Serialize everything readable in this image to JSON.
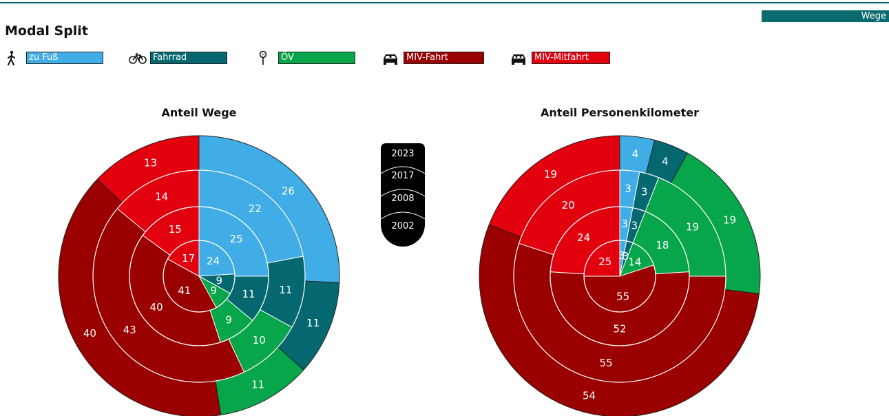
{
  "header": {
    "badge": "Wege",
    "title": "Modal Split"
  },
  "legend": [
    {
      "key": "fuss",
      "label": "zu Fuß",
      "color": "#41ade6",
      "icon": "pedestrian-icon"
    },
    {
      "key": "rad",
      "label": "Fahrrad",
      "color": "#056870",
      "icon": "bicycle-icon"
    },
    {
      "key": "oev",
      "label": "ÖV",
      "color": "#08a64a",
      "icon": "bus-stop-icon"
    },
    {
      "key": "mivf",
      "label": "MIV-Fahrt",
      "color": "#9a0000",
      "icon": "car-driver-icon"
    },
    {
      "key": "mivm",
      "label": "MIV-Mitfahrt",
      "color": "#e2000f",
      "icon": "car-passenger-icon"
    }
  ],
  "year_selector": {
    "years": [
      "2023",
      "2017",
      "2008",
      "2002"
    ]
  },
  "chart_data": [
    {
      "type": "pie",
      "title": "Anteil Wege",
      "rings_inner_to_outer": [
        "2002",
        "2008",
        "2017",
        "2023"
      ],
      "categories": [
        "zu Fuß",
        "Fahrrad",
        "ÖV",
        "MIV-Fahrt",
        "MIV-Mitfahrt"
      ],
      "series": [
        {
          "ring": "2002",
          "values": [
            24,
            9,
            9,
            41,
            17
          ]
        },
        {
          "ring": "2008",
          "values": [
            25,
            11,
            9,
            40,
            15
          ]
        },
        {
          "ring": "2017",
          "values": [
            22,
            11,
            10,
            43,
            14
          ]
        },
        {
          "ring": "2023",
          "values": [
            26,
            11,
            11,
            40,
            13
          ]
        }
      ]
    },
    {
      "type": "pie",
      "title": "Anteil Personenkilometer",
      "rings_inner_to_outer": [
        "2002",
        "2008",
        "2017",
        "2023"
      ],
      "categories": [
        "zu Fuß",
        "Fahrrad",
        "ÖV",
        "MIV-Fahrt",
        "MIV-Mitfahrt"
      ],
      "series": [
        {
          "ring": "2002",
          "values": [
            3,
            3,
            14,
            55,
            25
          ]
        },
        {
          "ring": "2008",
          "values": [
            3,
            3,
            18,
            52,
            24
          ]
        },
        {
          "ring": "2017",
          "values": [
            3,
            3,
            19,
            55,
            20
          ]
        },
        {
          "ring": "2023",
          "values": [
            4,
            4,
            19,
            54,
            19
          ]
        }
      ]
    }
  ]
}
